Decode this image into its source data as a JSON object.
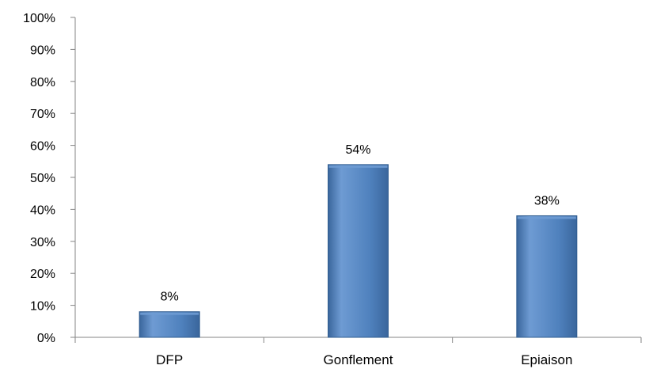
{
  "chart_data": {
    "type": "bar",
    "title": "",
    "xlabel": "",
    "ylabel": "",
    "categories": [
      "DFP",
      "Gonflement",
      "Epiaison"
    ],
    "values": [
      8,
      54,
      38
    ],
    "data_labels": [
      "8%",
      "54%",
      "38%"
    ],
    "ylim": [
      0,
      100
    ],
    "y_ticks": [
      0,
      10,
      20,
      30,
      40,
      50,
      60,
      70,
      80,
      90,
      100
    ],
    "y_tick_labels": [
      "0%",
      "10%",
      "20%",
      "30%",
      "40%",
      "50%",
      "60%",
      "70%",
      "80%",
      "90%",
      "100%"
    ],
    "grid": false,
    "legend": "none",
    "colors": {
      "bar": "#4f81bd",
      "bar_highlight": "#6e9bd3",
      "bar_shade": "#3a669c",
      "bar_edge": "#2f5c8f",
      "axis": "#868686",
      "text": "#000000"
    }
  }
}
